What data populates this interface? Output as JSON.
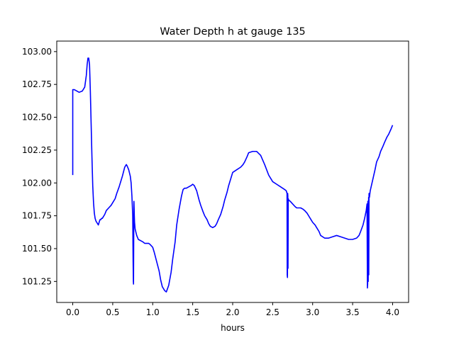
{
  "chart_data": {
    "type": "line",
    "title": "Water Depth h at gauge 135",
    "xlabel": "hours",
    "ylabel": "",
    "xlim": [
      -0.2,
      4.2
    ],
    "ylim": [
      101.09,
      103.08
    ],
    "grid": false,
    "x_ticks": [
      0.0,
      0.5,
      1.0,
      1.5,
      2.0,
      2.5,
      3.0,
      3.5,
      4.0
    ],
    "x_tick_labels": [
      "0.0",
      "0.5",
      "1.0",
      "1.5",
      "2.0",
      "2.5",
      "3.0",
      "3.5",
      "4.0"
    ],
    "y_ticks": [
      101.25,
      101.5,
      101.75,
      102.0,
      102.25,
      102.5,
      102.75,
      103.0
    ],
    "y_tick_labels": [
      "101.25",
      "101.50",
      "101.75",
      "102.00",
      "102.25",
      "102.50",
      "102.75",
      "103.00"
    ],
    "series": [
      {
        "color": "#0000ff",
        "x": [
          0.0,
          0.0,
          0.02,
          0.05,
          0.08,
          0.12,
          0.15,
          0.17,
          0.18,
          0.19,
          0.2,
          0.21,
          0.22,
          0.23,
          0.24,
          0.25,
          0.26,
          0.27,
          0.28,
          0.29,
          0.3,
          0.32,
          0.33,
          0.34,
          0.35,
          0.36,
          0.37,
          0.38,
          0.4,
          0.42,
          0.45,
          0.48,
          0.5,
          0.53,
          0.55,
          0.58,
          0.6,
          0.62,
          0.65,
          0.67,
          0.68,
          0.7,
          0.72,
          0.73,
          0.74,
          0.75,
          0.755,
          0.758,
          0.76,
          0.762,
          0.765,
          0.768,
          0.77,
          0.773,
          0.78,
          0.8,
          0.82,
          0.85,
          0.88,
          0.9,
          0.92,
          0.95,
          0.97,
          1.0,
          1.02,
          1.05,
          1.08,
          1.1,
          1.12,
          1.15,
          1.17,
          1.2,
          1.23,
          1.25,
          1.28,
          1.3,
          1.33,
          1.36,
          1.38,
          1.4,
          1.42,
          1.45,
          1.48,
          1.5,
          1.52,
          1.55,
          1.58,
          1.6,
          1.63,
          1.65,
          1.68,
          1.7,
          1.72,
          1.75,
          1.78,
          1.8,
          1.82,
          1.85,
          1.88,
          1.9,
          1.93,
          1.95,
          1.98,
          2.0,
          2.05,
          2.1,
          2.13,
          2.15,
          2.18,
          2.2,
          2.25,
          2.3,
          2.35,
          2.4,
          2.45,
          2.48,
          2.5,
          2.55,
          2.6,
          2.65,
          2.67,
          2.68,
          2.682,
          2.685,
          2.688,
          2.69,
          2.692,
          2.695,
          2.7,
          2.72,
          2.75,
          2.78,
          2.8,
          2.85,
          2.88,
          2.9,
          2.93,
          2.95,
          2.98,
          3.0,
          3.03,
          3.05,
          3.08,
          3.1,
          3.15,
          3.2,
          3.25,
          3.3,
          3.35,
          3.4,
          3.45,
          3.5,
          3.55,
          3.58,
          3.6,
          3.63,
          3.65,
          3.67,
          3.68,
          3.685,
          3.688,
          3.69,
          3.695,
          3.7,
          3.702,
          3.705,
          3.71,
          3.72,
          3.75,
          3.78,
          3.8,
          3.83,
          3.85,
          3.88,
          3.9,
          3.93,
          3.95,
          3.98,
          4.0
        ],
        "y": [
          102.06,
          102.71,
          102.71,
          102.7,
          102.69,
          102.7,
          102.73,
          102.82,
          102.9,
          102.95,
          102.95,
          102.9,
          102.7,
          102.45,
          102.2,
          101.98,
          101.85,
          101.77,
          101.73,
          101.71,
          101.7,
          101.68,
          101.7,
          101.72,
          101.72,
          101.73,
          101.73,
          101.74,
          101.76,
          101.79,
          101.81,
          101.83,
          101.85,
          101.88,
          101.92,
          101.97,
          102.01,
          102.05,
          102.12,
          102.14,
          102.13,
          102.1,
          102.05,
          102.0,
          101.9,
          101.75,
          101.4,
          101.25,
          101.23,
          101.5,
          101.86,
          101.8,
          101.75,
          101.7,
          101.65,
          101.6,
          101.57,
          101.56,
          101.55,
          101.54,
          101.54,
          101.54,
          101.53,
          101.51,
          101.47,
          101.4,
          101.33,
          101.26,
          101.21,
          101.18,
          101.17,
          101.22,
          101.32,
          101.42,
          101.55,
          101.68,
          101.8,
          101.9,
          101.95,
          101.96,
          101.96,
          101.97,
          101.98,
          101.99,
          101.98,
          101.94,
          101.87,
          101.83,
          101.78,
          101.75,
          101.72,
          101.69,
          101.67,
          101.66,
          101.67,
          101.69,
          101.72,
          101.76,
          101.82,
          101.87,
          101.93,
          101.98,
          102.04,
          102.08,
          102.1,
          102.12,
          102.14,
          102.16,
          102.2,
          102.23,
          102.24,
          102.24,
          102.21,
          102.14,
          102.06,
          102.03,
          102.01,
          101.99,
          101.97,
          101.95,
          101.94,
          101.92,
          101.3,
          101.28,
          101.92,
          101.9,
          101.35,
          101.88,
          101.87,
          101.86,
          101.84,
          101.82,
          101.81,
          101.81,
          101.8,
          101.79,
          101.77,
          101.75,
          101.72,
          101.7,
          101.68,
          101.66,
          101.63,
          101.6,
          101.58,
          101.58,
          101.59,
          101.6,
          101.59,
          101.58,
          101.57,
          101.57,
          101.58,
          101.6,
          101.63,
          101.68,
          101.73,
          101.79,
          101.84,
          101.2,
          101.23,
          101.86,
          101.25,
          101.89,
          101.3,
          101.92,
          101.89,
          101.94,
          102.02,
          102.1,
          102.16,
          102.2,
          102.24,
          102.28,
          102.31,
          102.35,
          102.37,
          102.41,
          102.44
        ]
      }
    ]
  }
}
